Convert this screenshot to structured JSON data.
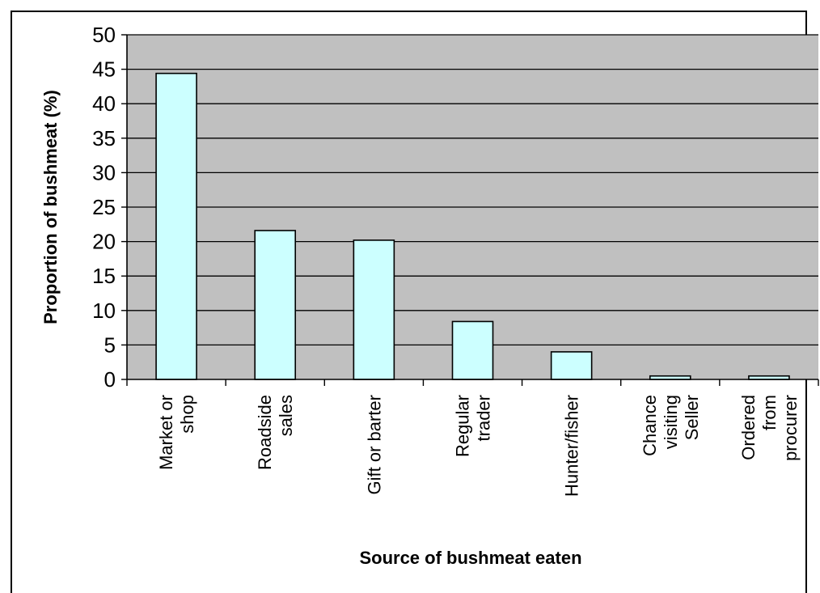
{
  "chart_data": {
    "type": "bar",
    "title": "",
    "xlabel": "Source of bushmeat eaten",
    "ylabel": "Proportion of bushmeat (%)",
    "ylim": [
      0,
      50
    ],
    "ytick_step": 5,
    "yticks": [
      "0",
      "5",
      "10",
      "15",
      "20",
      "25",
      "30",
      "35",
      "40",
      "45",
      "50"
    ],
    "grid": true,
    "legend": "none",
    "categories": [
      [
        "Market or",
        "shop"
      ],
      [
        "Roadside",
        "sales"
      ],
      [
        "Gift or barter"
      ],
      [
        "Regular",
        "trader"
      ],
      [
        "Hunter/fisher"
      ],
      [
        "Chance",
        "visiting",
        "Seller"
      ],
      [
        "Ordered",
        "from",
        "procurer"
      ]
    ],
    "values": [
      44.4,
      21.6,
      20.2,
      8.4,
      4.0,
      0.5,
      0.5
    ],
    "colors": {
      "plot_background": "#c0c0c0",
      "bar_fill": "#ccffff",
      "bar_stroke": "#000000",
      "grid": "#000000"
    }
  }
}
